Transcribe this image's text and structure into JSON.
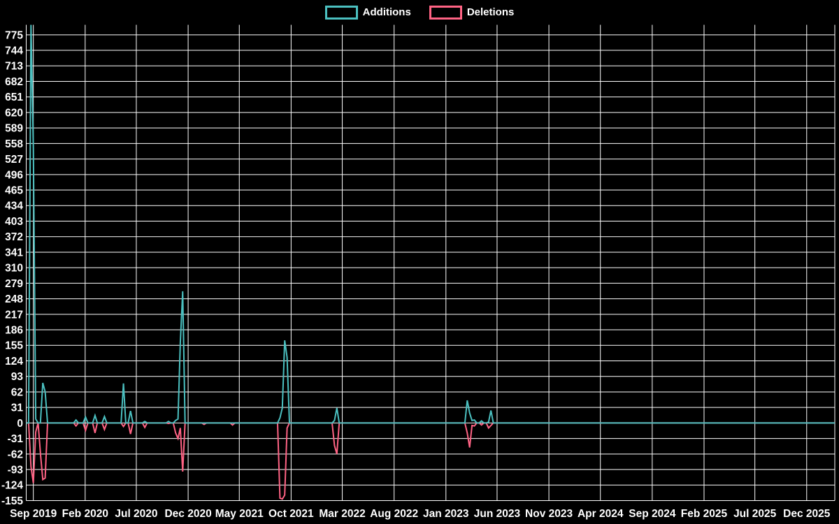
{
  "chart_data": {
    "type": "line",
    "title": "",
    "background_color": "#000000",
    "grid_color": "#ffffff",
    "text_color": "#ffffff",
    "legend_position": "top-center",
    "legend": [
      {
        "label": "Additions",
        "color": "#4bc0c0"
      },
      {
        "label": "Deletions",
        "color": "#ff6384"
      }
    ],
    "y_axis": {
      "min": -155,
      "max_plot_top": 795,
      "step": 31,
      "tick_labels": [
        775,
        744,
        713,
        682,
        651,
        620,
        589,
        558,
        527,
        496,
        465,
        434,
        403,
        372,
        341,
        310,
        279,
        248,
        217,
        186,
        155,
        124,
        93,
        62,
        31,
        0,
        -31,
        -62,
        -93,
        -124,
        -155
      ]
    },
    "x_axis": {
      "start_date": "2019-08-11",
      "end_date": "2026-02-22",
      "point_interval_days": 7,
      "ticks": [
        {
          "label": "Sep 2019",
          "date": "2019-09-01"
        },
        {
          "label": "Feb 2020",
          "date": "2020-02-01"
        },
        {
          "label": "Jul 2020",
          "date": "2020-07-01"
        },
        {
          "label": "Dec 2020",
          "date": "2020-12-01"
        },
        {
          "label": "May 2021",
          "date": "2021-05-01"
        },
        {
          "label": "Oct 2021",
          "date": "2021-10-01"
        },
        {
          "label": "Mar 2022",
          "date": "2022-03-01"
        },
        {
          "label": "Aug 2022",
          "date": "2022-08-01"
        },
        {
          "label": "Jan 2023",
          "date": "2023-01-01"
        },
        {
          "label": "Jun 2023",
          "date": "2023-06-01"
        },
        {
          "label": "Nov 2023",
          "date": "2023-11-01"
        },
        {
          "label": "Apr 2024",
          "date": "2024-04-01"
        },
        {
          "label": "Sep 2024",
          "date": "2024-09-01"
        },
        {
          "label": "Feb 2025",
          "date": "2025-02-01"
        },
        {
          "label": "Jul 2025",
          "date": "2025-07-01"
        },
        {
          "label": "Dec 2025",
          "date": "2025-12-01"
        }
      ]
    },
    "series_note": "Weekly points; all weeks are [additions:0, deletions:0] except the events below. Deletions are plotted as negative values.",
    "weekly_events": [
      {
        "date": "2019-08-25",
        "additions": 795,
        "deletions": -87
      },
      {
        "date": "2019-09-01",
        "additions": 550,
        "deletions": -120
      },
      {
        "date": "2019-09-08",
        "additions": 8,
        "deletions": -18
      },
      {
        "date": "2019-09-22",
        "additions": 0,
        "deletions": -60
      },
      {
        "date": "2019-09-29",
        "additions": 80,
        "deletions": -113
      },
      {
        "date": "2019-10-06",
        "additions": 62,
        "deletions": -110
      },
      {
        "date": "2020-01-05",
        "additions": 6,
        "deletions": -6
      },
      {
        "date": "2020-02-02",
        "additions": 12,
        "deletions": -15
      },
      {
        "date": "2020-03-01",
        "additions": 15,
        "deletions": -20
      },
      {
        "date": "2020-03-29",
        "additions": 13,
        "deletions": -13
      },
      {
        "date": "2020-05-24",
        "additions": 79,
        "deletions": -7
      },
      {
        "date": "2020-06-14",
        "additions": 24,
        "deletions": -22
      },
      {
        "date": "2020-07-26",
        "additions": 3,
        "deletions": -9
      },
      {
        "date": "2020-10-04",
        "additions": 3,
        "deletions": -1
      },
      {
        "date": "2020-10-25",
        "additions": 5,
        "deletions": -20
      },
      {
        "date": "2020-11-01",
        "additions": 8,
        "deletions": -31
      },
      {
        "date": "2020-11-08",
        "additions": 160,
        "deletions": -10
      },
      {
        "date": "2020-11-15",
        "additions": 263,
        "deletions": -97
      },
      {
        "date": "2021-01-17",
        "additions": 0,
        "deletions": -3
      },
      {
        "date": "2021-04-11",
        "additions": 0,
        "deletions": -4
      },
      {
        "date": "2021-08-29",
        "additions": 10,
        "deletions": -150
      },
      {
        "date": "2021-09-05",
        "additions": 30,
        "deletions": -152
      },
      {
        "date": "2021-09-12",
        "additions": 165,
        "deletions": -144
      },
      {
        "date": "2021-09-19",
        "additions": 131,
        "deletions": -10
      },
      {
        "date": "2022-02-06",
        "additions": 5,
        "deletions": -45
      },
      {
        "date": "2022-02-13",
        "additions": 30,
        "deletions": -62
      },
      {
        "date": "2023-03-05",
        "additions": 45,
        "deletions": -20
      },
      {
        "date": "2023-03-12",
        "additions": 20,
        "deletions": -49
      },
      {
        "date": "2023-03-19",
        "additions": 5,
        "deletions": -5
      },
      {
        "date": "2023-03-26",
        "additions": 6,
        "deletions": -6
      },
      {
        "date": "2023-04-16",
        "additions": 4,
        "deletions": -4
      },
      {
        "date": "2023-05-07",
        "additions": 2,
        "deletions": -10
      },
      {
        "date": "2023-05-14",
        "additions": 25,
        "deletions": -5
      }
    ]
  }
}
